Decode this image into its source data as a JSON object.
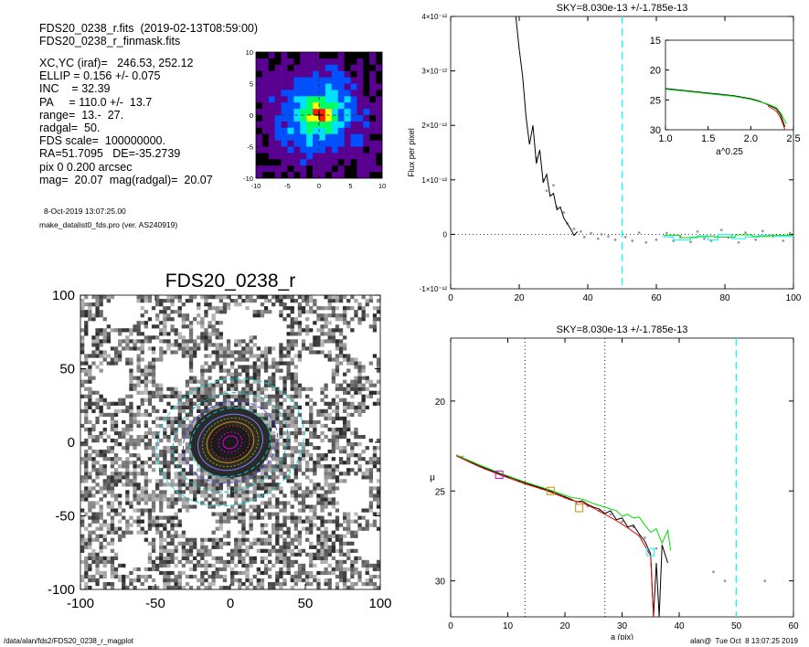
{
  "header": {
    "line1": "FDS20_0238_r.fits  (2019-02-13T08:59:00)",
    "line2": "FDS20_0238_r_finmask.fits"
  },
  "info_lines": [
    "XC,YC (iraf)=   246.53, 252.12",
    "ELLIP = 0.156 +/- 0.075",
    "INC    = 32.39",
    "PA     = 110.0 +/-  13.7",
    "range=  13.-  27.",
    "radgal=  50.",
    "FDS scale=  100000000.",
    "RA=51.7095   DE=-35.2739",
    "pix 0 0.200 arcsec",
    "mag=  20.07  mag(radgal)=  20.07"
  ],
  "timestamp": "8-Oct-2019 13:07:25.00",
  "program": "make_datalist0_fds.pro (ver. AS240919)",
  "footer_left": "/data/alan/fds2/FDS20_0238_r_magplot",
  "footer_right": "alan@  Tue Oct  8 13:07:25 2019",
  "colors": {
    "data_black": "#000000",
    "points_grey": "#9a9a9a",
    "green": "#00dd00",
    "red": "#ee0000",
    "cyan": "#00ffff",
    "magenta": "#dd00dd",
    "orange": "#d09000"
  },
  "chart_data": [
    {
      "type": "heatmap",
      "panel": "thumbnail",
      "xlim": [
        -10,
        10
      ],
      "ylim": [
        -10,
        10
      ],
      "x_ticks": [
        "-10",
        "-5",
        "0",
        "5",
        "10"
      ],
      "y_ticks": [
        "10",
        "5",
        "0",
        "-5",
        "-10"
      ],
      "center": [
        0,
        0
      ],
      "colormap": [
        "#000000",
        "#5a0090",
        "#0050ff",
        "#00e0ff",
        "#00ff60",
        "#ffff00",
        "#ff2000"
      ]
    },
    {
      "type": "heatmap",
      "panel": "galaxy_image",
      "title": "FDS20_0238_r",
      "xlim": [
        -100,
        100
      ],
      "ylim": [
        -100,
        100
      ],
      "x_ticks": [
        "-100",
        "-50",
        "0",
        "50",
        "100"
      ],
      "y_ticks": [
        "100",
        "50",
        "0",
        "-50",
        "-100"
      ],
      "masked_regions": [
        {
          "x": -78,
          "y": 40
        },
        {
          "x": -38,
          "y": 48
        },
        {
          "x": 6,
          "y": 81
        },
        {
          "x": 27,
          "y": 76
        },
        {
          "x": -71,
          "y": 89
        },
        {
          "x": 88,
          "y": 67
        },
        {
          "x": 56,
          "y": 49
        },
        {
          "x": 97,
          "y": 13
        },
        {
          "x": 82,
          "y": -37
        },
        {
          "x": -21,
          "y": -55
        },
        {
          "x": 95,
          "y": -70
        },
        {
          "x": -65,
          "y": -74
        }
      ],
      "isophote_radii": [
        5,
        8,
        10,
        13,
        16,
        19,
        22,
        27,
        32,
        39,
        50
      ],
      "ellipticity": 0.156,
      "position_angle_deg": 110.0
    },
    {
      "type": "line",
      "panel": "flux",
      "title": "SKY=8.030e-13 +/-1.785e-13",
      "xlabel": "",
      "ylabel": "Flux per pixel",
      "xlim": [
        0,
        100
      ],
      "ylim": [
        -1e-12,
        4e-12
      ],
      "x_ticks": [
        "0",
        "20",
        "40",
        "60",
        "80",
        "100"
      ],
      "y_ticks": [
        "-1×10⁻¹²",
        "0",
        "1×10⁻¹²",
        "2×10⁻¹²",
        "3×10⁻¹²",
        "4×10⁻¹²"
      ],
      "y_tick_values": [
        -1e-12,
        0,
        1e-12,
        2e-12,
        3e-12,
        4e-12
      ],
      "vline_cyan": 50,
      "hline_dotted": 0,
      "series": [
        {
          "color": "black",
          "x": [
            19,
            20,
            21,
            22,
            23,
            24,
            25,
            26,
            27,
            28,
            29,
            30,
            31,
            32,
            33,
            34,
            35,
            36,
            37
          ],
          "y": [
            4.1e-12,
            3.4e-12,
            2.9e-12,
            2.15e-12,
            1.65e-12,
            2e-12,
            1.3e-12,
            1.55e-12,
            9.5e-13,
            1.1e-12,
            7e-13,
            7.5e-13,
            4.5e-13,
            5e-13,
            3e-13,
            2e-13,
            1e-13,
            -2e-14,
            5e-14
          ]
        },
        {
          "color": "cyan",
          "x": [
            62,
            65,
            65,
            70,
            70,
            75,
            75,
            78,
            78,
            82,
            82,
            86,
            86,
            90,
            90,
            94,
            94,
            100
          ],
          "y": [
            -5e-14,
            -5e-14,
            -1e-13,
            -1e-13,
            -5e-14,
            -5e-14,
            -1e-13,
            -1e-13,
            0.0,
            0.0,
            -8e-14,
            -8e-14,
            -5e-14,
            -5e-14,
            -2e-14,
            -2e-14,
            -4e-14,
            -4e-14
          ]
        },
        {
          "color": "green",
          "x": [
            62,
            67,
            67,
            72,
            72,
            77,
            77,
            83,
            83,
            88,
            88,
            93,
            93,
            100
          ],
          "y": [
            -2e-14,
            -2e-14,
            -6e-14,
            -6e-14,
            -3e-14,
            -3e-14,
            -5e-14,
            -5e-14,
            -1e-14,
            -1e-14,
            -4e-14,
            -4e-14,
            -2e-14,
            -2e-14
          ]
        }
      ],
      "points_x": [
        25,
        27,
        28,
        30,
        31,
        33,
        34,
        36,
        38,
        39,
        41,
        43,
        44,
        46,
        48,
        51,
        53,
        55,
        57,
        60,
        63,
        65,
        67,
        70,
        72,
        74,
        76,
        79,
        81,
        84,
        86,
        89,
        91,
        94,
        97,
        99
      ],
      "points_y": [
        1.4e-12,
        1e-12,
        8e-13,
        9e-13,
        5e-13,
        4e-13,
        2e-13,
        1e-13,
        5e-14,
        -5e-14,
        2e-14,
        -8e-14,
        0.0,
        -4e-14,
        -1e-13,
        -5e-14,
        -1.2e-13,
        3e-14,
        -1.5e-13,
        -1e-13,
        2e-14,
        -1.2e-13,
        -5e-14,
        -1.4e-13,
        5e-14,
        -8e-14,
        -1.2e-13,
        8e-14,
        -6e-14,
        -1.5e-13,
        3e-14,
        -1e-13,
        6e-14,
        -4e-14,
        -1.2e-13,
        2e-14
      ]
    },
    {
      "type": "line",
      "panel": "inset",
      "xlabel": "a^0.25",
      "ylabel": "",
      "xlim": [
        1.0,
        2.5
      ],
      "ylim": [
        30,
        15
      ],
      "x_ticks": [
        "1.0",
        "1.5",
        "2.0",
        "2.5"
      ],
      "y_ticks": [
        "15",
        "20",
        "25",
        "30"
      ],
      "series": [
        {
          "color": "black",
          "x": [
            1.0,
            1.2,
            1.4,
            1.6,
            1.8,
            2.0,
            2.1,
            2.2,
            2.3,
            2.35,
            2.4
          ],
          "y": [
            23.1,
            23.4,
            23.7,
            24.0,
            24.3,
            24.8,
            25.2,
            25.8,
            26.5,
            27.5,
            29.5
          ]
        },
        {
          "color": "red",
          "x": [
            2.2,
            2.3,
            2.35,
            2.4
          ],
          "y": [
            26.0,
            26.9,
            28.0,
            30
          ]
        },
        {
          "color": "green",
          "x": [
            1.0,
            1.2,
            1.4,
            1.6,
            1.8,
            2.0,
            2.1,
            2.2,
            2.3,
            2.35,
            2.42
          ],
          "y": [
            23.2,
            23.5,
            23.8,
            24.1,
            24.4,
            24.9,
            25.3,
            25.7,
            26.3,
            27.2,
            29.0
          ]
        }
      ]
    },
    {
      "type": "line",
      "panel": "profile",
      "title": "SKY=8.030e-13 +/-1.785e-13",
      "xlabel": "a (pix)",
      "ylabel": "μ",
      "xlim": [
        0,
        60
      ],
      "ylim": [
        32,
        16.5
      ],
      "x_ticks": [
        "0",
        "10",
        "20",
        "30",
        "40",
        "50",
        "60"
      ],
      "y_ticks": [
        "20",
        "25",
        "30"
      ],
      "vlines_dotted": [
        13,
        27
      ],
      "vline_cyan": 50,
      "series": [
        {
          "color": "black",
          "x": [
            1,
            3,
            5,
            7,
            9,
            11,
            13,
            15,
            17,
            19,
            21,
            22,
            23,
            24,
            25,
            26,
            27,
            28,
            29,
            30,
            31,
            32,
            33,
            34,
            35,
            35.5,
            36,
            36.5,
            37,
            38
          ],
          "y": [
            23.0,
            23.3,
            23.6,
            23.85,
            24.1,
            24.3,
            24.55,
            24.75,
            24.95,
            25.2,
            25.45,
            25.6,
            25.55,
            25.75,
            25.9,
            26.0,
            26.25,
            26.1,
            26.6,
            26.5,
            27.0,
            26.9,
            27.4,
            27.8,
            28.5,
            32.0,
            29.0,
            32.0,
            28.0,
            29.0
          ]
        },
        {
          "color": "red",
          "x": [
            1,
            5,
            9,
            13,
            17,
            21,
            23,
            25,
            27,
            29,
            31,
            33,
            35,
            35.5
          ],
          "y": [
            23.05,
            23.65,
            24.15,
            24.6,
            25.0,
            25.5,
            25.65,
            25.95,
            26.3,
            26.65,
            27.05,
            27.5,
            28.6,
            32.0
          ]
        },
        {
          "color": "green",
          "x": [
            1,
            5,
            9,
            13,
            17,
            21,
            23,
            25,
            27,
            29,
            30,
            31,
            32,
            33,
            34,
            35,
            36,
            37,
            38,
            38.5
          ],
          "y": [
            23.0,
            23.55,
            24.05,
            24.5,
            24.9,
            25.35,
            25.45,
            25.7,
            25.9,
            26.1,
            26.4,
            26.3,
            26.5,
            26.45,
            26.9,
            27.3,
            27.1,
            27.9,
            27.2,
            28.3
          ]
        }
      ],
      "points_x": [
        2,
        4,
        6,
        8,
        10,
        12,
        14,
        16,
        18,
        20,
        22,
        24,
        26,
        28,
        30,
        32,
        34,
        36,
        46,
        48,
        55
      ],
      "points_y": [
        23.1,
        23.45,
        23.75,
        24.0,
        24.2,
        24.45,
        24.65,
        24.85,
        25.05,
        25.35,
        25.7,
        25.85,
        26.1,
        26.3,
        26.7,
        27.0,
        27.6,
        28.2,
        29.5,
        30.0,
        30.0
      ],
      "markers": [
        {
          "x": 8.5,
          "y": 24.1,
          "color": "magenta"
        },
        {
          "x": 17.5,
          "y": 25.0,
          "color": "orange"
        },
        {
          "x": 22.5,
          "y": 25.95,
          "color": "orange"
        },
        {
          "x": 35,
          "y": 28.4,
          "color": "cyan"
        }
      ]
    }
  ]
}
